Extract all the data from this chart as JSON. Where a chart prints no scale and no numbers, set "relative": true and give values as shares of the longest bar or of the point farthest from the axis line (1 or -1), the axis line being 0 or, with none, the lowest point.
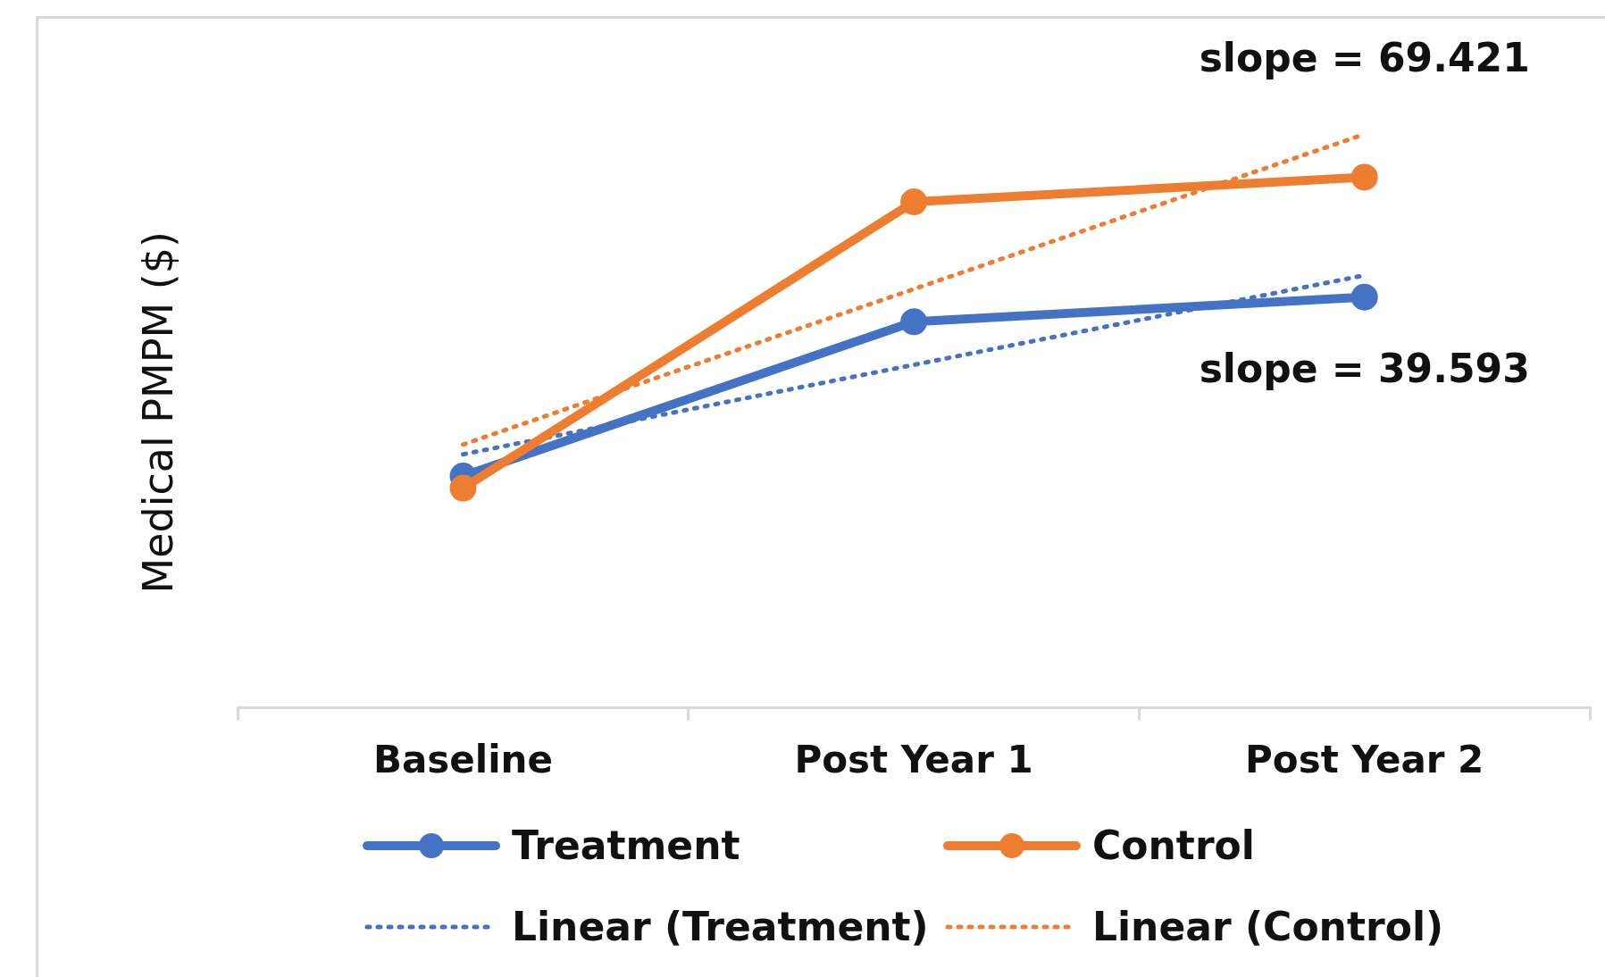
{
  "chart_data": {
    "type": "line",
    "ylabel": "Medical PMPM ($)",
    "relative": true,
    "categories": [
      "Baseline",
      "Post Year 1",
      "Post Year 2"
    ],
    "series": [
      {
        "name": "Treatment",
        "color": "#4472c4",
        "values": [
          0.404,
          0.673,
          0.716
        ],
        "marker": "circle",
        "line_style": "solid"
      },
      {
        "name": "Control",
        "color": "#ed7d31",
        "values": [
          0.383,
          0.882,
          0.925
        ],
        "marker": "circle",
        "line_style": "solid"
      },
      {
        "name": "Linear (Treatment)",
        "color": "#4472c4",
        "values": [
          0.442,
          0.598,
          0.754
        ],
        "marker": "none",
        "line_style": "dotted"
      },
      {
        "name": "Linear (Control)",
        "color": "#ed7d31",
        "values": [
          0.459,
          0.73,
          1.0
        ],
        "marker": "none",
        "line_style": "dotted"
      }
    ],
    "annotations": [
      {
        "text": "slope = 69.421",
        "x": "Post Year 2",
        "y": 1.0
      },
      {
        "text": "slope = 39.593",
        "x": "Post Year 2",
        "y": 0.716
      }
    ],
    "grid": false,
    "legend": "bottom"
  }
}
